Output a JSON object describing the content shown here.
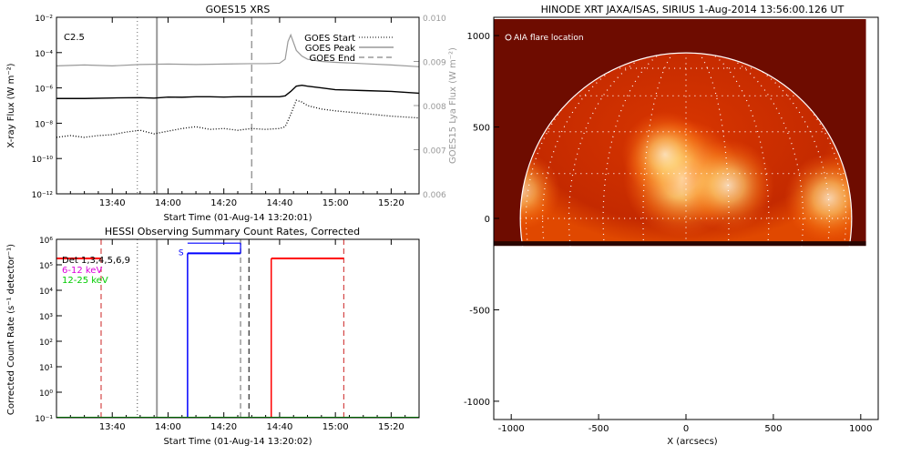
{
  "chart_data": [
    {
      "type": "line",
      "title": "GOES15 XRS",
      "xlabel": "Start Time (01-Aug-14 13:20:01)",
      "ylabel": "X-ray Flux (W m⁻²)",
      "ylabel_right": "GOES15 Lya Flux (W m⁻²)",
      "x_ticks": [
        "13:40",
        "14:00",
        "14:20",
        "14:40",
        "15:00",
        "15:20"
      ],
      "x_tick_minutes": [
        20,
        40,
        60,
        80,
        100,
        120
      ],
      "xlim_minutes": [
        0,
        130
      ],
      "ylim": [
        1e-12,
        0.01
      ],
      "yscale": "log",
      "y_ticks": [
        "10⁻¹²",
        "10⁻¹⁰",
        "10⁻⁸",
        "10⁻⁶",
        "10⁻⁴",
        "10⁻²"
      ],
      "y_tick_exponents": [
        -12,
        -10,
        -8,
        -6,
        -4,
        -2
      ],
      "y2lim": [
        0.006,
        0.01
      ],
      "y2_ticks": [
        "0.006",
        "0.007",
        "0.008",
        "0.009",
        "0.010"
      ],
      "y2_values": [
        0.006,
        0.007,
        0.008,
        0.009,
        0.01
      ],
      "flare_class": "C2.5",
      "legend": [
        {
          "label": "GOES Start",
          "style": "dotted"
        },
        {
          "label": "GOES Peak",
          "style": "solid"
        },
        {
          "label": "GOES End",
          "style": "dashed"
        }
      ],
      "markers_minutes": {
        "dotted": 29,
        "solid": 36,
        "dashed": 70
      },
      "series": [
        {
          "key": "long",
          "color": "#000000",
          "style": "solid",
          "x": [
            0,
            10,
            20,
            30,
            35,
            40,
            45,
            50,
            55,
            60,
            65,
            70,
            75,
            80,
            82,
            84,
            86,
            88,
            90,
            95,
            100,
            110,
            120,
            130
          ],
          "log_y": [
            -6.6,
            -6.6,
            -6.57,
            -6.55,
            -6.58,
            -6.52,
            -6.53,
            -6.5,
            -6.5,
            -6.52,
            -6.5,
            -6.5,
            -6.5,
            -6.5,
            -6.45,
            -6.2,
            -5.9,
            -5.85,
            -5.9,
            -6.0,
            -6.1,
            -6.15,
            -6.2,
            -6.3
          ]
        },
        {
          "key": "short",
          "color": "#000000",
          "style": "dotted",
          "x": [
            0,
            5,
            10,
            15,
            20,
            25,
            30,
            35,
            40,
            45,
            50,
            55,
            60,
            65,
            70,
            75,
            80,
            82,
            84,
            86,
            88,
            90,
            95,
            100,
            110,
            120,
            130
          ],
          "log_y": [
            -8.8,
            -8.7,
            -8.8,
            -8.7,
            -8.65,
            -8.5,
            -8.4,
            -8.6,
            -8.45,
            -8.3,
            -8.2,
            -8.35,
            -8.3,
            -8.4,
            -8.3,
            -8.35,
            -8.3,
            -8.2,
            -7.5,
            -6.7,
            -6.8,
            -7.0,
            -7.2,
            -7.3,
            -7.45,
            -7.6,
            -7.7
          ]
        },
        {
          "key": "lya",
          "color": "#999999",
          "style": "solid",
          "x": [
            0,
            10,
            20,
            30,
            40,
            50,
            60,
            70,
            75,
            80,
            82,
            83,
            84,
            86,
            88,
            90,
            95,
            100,
            110,
            120,
            130
          ],
          "y2": [
            0.0089,
            0.00892,
            0.0089,
            0.00893,
            0.00894,
            0.00893,
            0.00894,
            0.00895,
            0.00895,
            0.00896,
            0.00905,
            0.00945,
            0.0096,
            0.00925,
            0.00912,
            0.00905,
            0.009,
            0.00898,
            0.00895,
            0.00892,
            0.00888
          ]
        }
      ]
    },
    {
      "type": "line",
      "title": "HESSI Observing Summary Count Rates, Corrected",
      "xlabel": "Start Time (01-Aug-14 13:20:02)",
      "ylabel": "Corrected Count Rate (s⁻¹ detector⁻¹)",
      "x_ticks": [
        "13:40",
        "14:00",
        "14:20",
        "14:40",
        "15:00",
        "15:20"
      ],
      "x_tick_minutes": [
        20,
        40,
        60,
        80,
        100,
        120
      ],
      "xlim_minutes": [
        0,
        130
      ],
      "ylim": [
        0.1,
        1000000.0
      ],
      "yscale": "log",
      "y_ticks": [
        "10⁻¹",
        "10⁰",
        "10¹",
        "10²",
        "10³",
        "10⁴",
        "10⁵",
        "10⁶"
      ],
      "y_tick_exponents": [
        -1,
        0,
        1,
        2,
        3,
        4,
        5,
        6
      ],
      "legend": [
        {
          "label": "Det 1,3,4,5,6,9",
          "color": "#000000"
        },
        {
          "label": "6-12 keV",
          "color": "#dd00dd"
        },
        {
          "label": "12-25 keV",
          "color": "#00cc00"
        }
      ],
      "annotation": "S",
      "segments": [
        {
          "color": "#ff0000",
          "x": [
            0,
            16
          ],
          "log_y": 5.25
        },
        {
          "color": "#0000ff",
          "x": [
            47,
            66
          ],
          "log_y": 5.45
        },
        {
          "color": "#ff0000",
          "x": [
            77,
            103
          ],
          "log_y": 5.25
        },
        {
          "color": "#00cc00",
          "x": [
            0,
            130
          ],
          "log_y": -1
        }
      ],
      "red_vertical_solid_minutes": [
        77
      ],
      "blue_vertical_solid_minutes": [
        47
      ],
      "blue_bracket_end_minutes": 66,
      "red_dashed_minutes": [
        16,
        103
      ],
      "black_dotted_minutes": [
        29
      ],
      "grey_solid_minutes": [
        36
      ],
      "grey_dashed_minutes": [
        66
      ],
      "black_dashed_minutes": [
        69
      ]
    },
    {
      "type": "heatmap",
      "title": "HINODE XRT JAXA/ISAS, SIRIUS  1-Aug-2014 13:56:00.126 UT",
      "xlabel": "X (arcsecs)",
      "ylabel": "",
      "xlim": [
        -1100,
        1100
      ],
      "ylim": [
        -1100,
        1100
      ],
      "x_ticks": [
        "-1000",
        "-500",
        "0",
        "500",
        "1000"
      ],
      "x_values": [
        -1000,
        -500,
        0,
        500,
        1000
      ],
      "y_ticks": [
        "-1000",
        "-500",
        "0",
        "500",
        "1000"
      ],
      "y_values": [
        -1000,
        -500,
        0,
        500,
        1000
      ],
      "solar_radius": 948,
      "image_extent": {
        "x": [
          -1100,
          1030
        ],
        "y": [
          -150,
          1090
        ]
      },
      "legend": "AIA flare location",
      "grid_step_deg": 15,
      "colors": {
        "dark": "#6e0c00",
        "mid": "#c02800",
        "bright": "#fff4c8"
      },
      "active_regions": [
        {
          "x": -20,
          "y": 220,
          "strength": 1.0
        },
        {
          "x": 240,
          "y": 180,
          "strength": 0.6
        },
        {
          "x": -120,
          "y": 350,
          "strength": 0.5
        },
        {
          "x": 820,
          "y": 110,
          "strength": 0.55
        },
        {
          "x": -940,
          "y": 150,
          "strength": 0.35
        }
      ]
    }
  ]
}
